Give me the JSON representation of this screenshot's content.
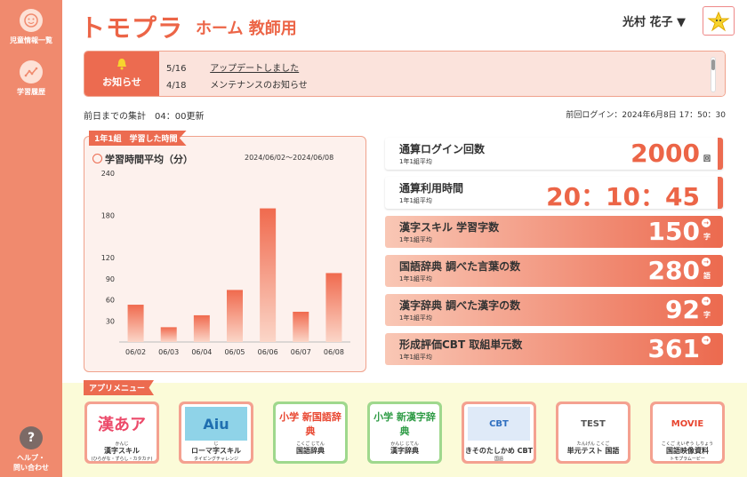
{
  "sidebar": {
    "items": [
      {
        "label": "児童情報一覧"
      },
      {
        "label": "学習履歴"
      }
    ],
    "help": {
      "label_line1": "ヘルプ・",
      "label_line2": "問い合わせ"
    }
  },
  "header": {
    "logo": "トモプラ",
    "title": "ホーム 教師用",
    "user_name": "光村 花子 ▼"
  },
  "notice": {
    "label": "お知らせ",
    "items": [
      {
        "date": "5/16",
        "text": "アップデートしました"
      },
      {
        "date": "4/18",
        "text": "メンテナンスのお知らせ"
      }
    ]
  },
  "summary": {
    "aggregate": "前日までの集計　04：00更新",
    "last_login": "前回ログイン：2024年6月8日 17：50：30"
  },
  "chart_panel": {
    "tag": "1年1組　学習した時間",
    "title": "学習時間平均（分）",
    "range": "2024/06/02～2024/06/08"
  },
  "chart_data": {
    "type": "bar",
    "categories": [
      "06/02",
      "06/03",
      "06/04",
      "06/05",
      "06/06",
      "06/07",
      "06/08"
    ],
    "values": [
      53,
      21,
      38,
      74,
      190,
      43,
      98
    ],
    "ylim": [
      0,
      240
    ],
    "yticks": [
      30,
      60,
      90,
      120,
      180,
      240
    ],
    "grid": false,
    "color_top": "#f06a4e",
    "color_bottom": "#fbd6c8"
  },
  "stats": [
    {
      "label": "通算ログイン回数",
      "sub": "1年1組平均",
      "value": "2000",
      "unit": "回"
    },
    {
      "label": "通算利用時間",
      "sub": "1年1組平均",
      "value": "20：10：45",
      "unit": ""
    },
    {
      "label": "漢字スキル 学習字数",
      "sub": "1年1組平均",
      "value": "150",
      "unit": "字"
    },
    {
      "label": "国語辞典 調べた言葉の数",
      "sub": "1年1組平均",
      "value": "280",
      "unit": "語"
    },
    {
      "label": "漢字辞典 調べた漢字の数",
      "sub": "1年1組平均",
      "value": "92",
      "unit": "字"
    },
    {
      "label": "形成評価CBT 取組単元数",
      "sub": "1年1組平均",
      "value": "361",
      "unit": ""
    }
  ],
  "apps": {
    "tag": "アプリメニュー",
    "items": [
      {
        "ruby": "かんじ",
        "name": "漢字スキル",
        "note": "(ひらがな・ずらし・カタカナ)",
        "icon_text": "漢あア"
      },
      {
        "ruby": "じ",
        "name": "ローマ字スキル",
        "note": "タイピングチャレンジ",
        "icon_text": "Aiu"
      },
      {
        "ruby": "こくご じてん",
        "name": "国語辞典",
        "note": "",
        "icon_text": "小学 新国語辞典"
      },
      {
        "ruby": "かんじ じてん",
        "name": "漢字辞典",
        "note": "",
        "icon_text": "小学 新漢字辞典"
      },
      {
        "ruby": "",
        "name": "きそのたしかめ CBT",
        "note": "国語",
        "icon_text": "CBT"
      },
      {
        "ruby": "たんげん こくご",
        "name": "単元テスト 国語",
        "note": "",
        "icon_text": "TEST"
      },
      {
        "ruby": "こくご えいぞう しりょう",
        "name": "国語映像資料",
        "note": "トモプラムービー",
        "icon_text": "MOVIE"
      }
    ]
  },
  "colors": {
    "accent": "#ec6b50",
    "sidebar": "#f08a6e",
    "app_area": "#fbfbd8"
  }
}
